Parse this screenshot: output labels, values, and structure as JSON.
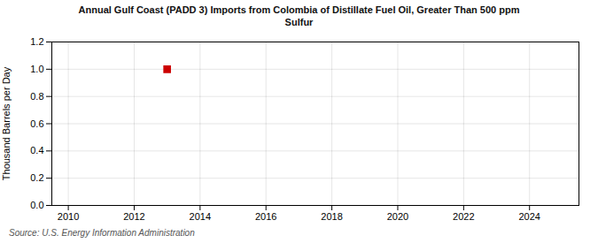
{
  "chart_data": {
    "type": "scatter",
    "title": "Annual Gulf Coast (PADD 3) Imports from Colombia of Distillate Fuel Oil, Greater Than 500 ppm\nSulfur",
    "ylabel": "Thousand Barrels per Day",
    "source": "Source: U.S. Energy Information Administration",
    "x": [
      2013
    ],
    "values": [
      1.0
    ],
    "color": "#cc0000",
    "marker": "square",
    "xlim": [
      2009.5,
      2025.5
    ],
    "xticks": [
      2010,
      2012,
      2014,
      2016,
      2018,
      2020,
      2022,
      2024
    ],
    "ylim": [
      0,
      1.2
    ],
    "yticks": [
      {
        "value": 0,
        "label": "0.0"
      },
      0.2,
      0.4,
      0.6,
      0.8,
      {
        "value": 1,
        "label": "1.0"
      },
      1.2
    ],
    "grid": true
  }
}
